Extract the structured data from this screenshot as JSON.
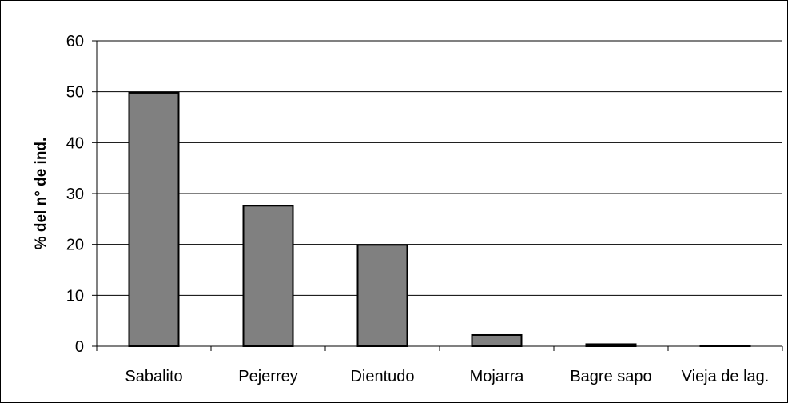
{
  "chart_data": {
    "type": "bar",
    "title": "",
    "xlabel": "",
    "ylabel": "% del n° de ind.",
    "ylim": [
      0,
      60
    ],
    "yticks": [
      0,
      10,
      20,
      30,
      40,
      50,
      60
    ],
    "grid": true,
    "legend": "none",
    "categories": [
      "Sabalito",
      "Pejerrey",
      "Dientudo",
      "Mojarra",
      "Bagre sapo",
      "Vieja de lag."
    ],
    "values": [
      49.8,
      27.6,
      19.9,
      2.2,
      0.4,
      0.15
    ],
    "bar_color": "#808080",
    "bar_edge_color": "#000000",
    "gridline_color": "#000000"
  }
}
